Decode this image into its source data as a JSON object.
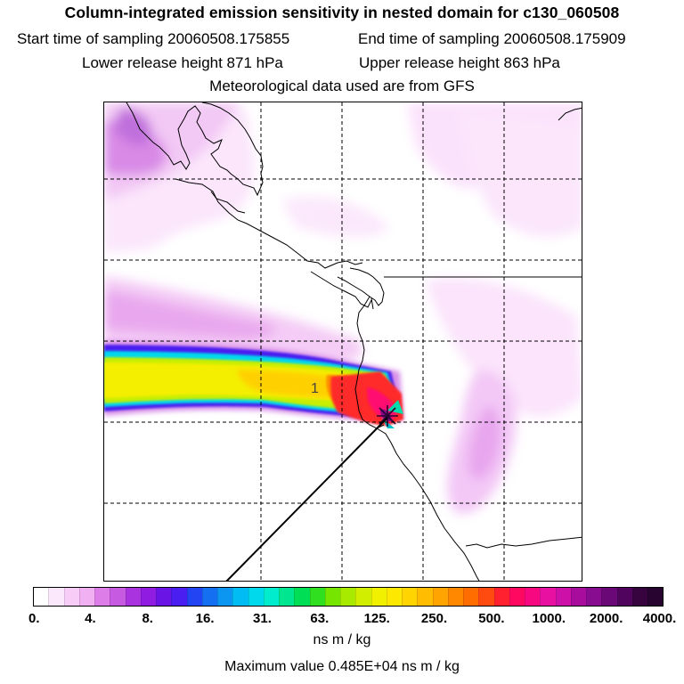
{
  "header": {
    "title": "Column-integrated emission sensitivity in nested domain for c130_060508",
    "start_label": "Start time of sampling 20060508.175855",
    "end_label": "End time of sampling 20060508.175909",
    "lower_label": "Lower release height  871 hPa",
    "upper_label": "Upper release height  863 hPa",
    "met_label": "Meteorological data used are from GFS"
  },
  "chart_data": {
    "type": "heatmap",
    "title": "Column-integrated emission sensitivity in nested domain for c130_060508",
    "map_annotation": "1",
    "colorbar": {
      "tick_labels": [
        "0.",
        "4.",
        "8.",
        "16.",
        "31.",
        "63.",
        "125.",
        "250.",
        "500.",
        "1000.",
        "2000.",
        "4000."
      ],
      "units": "ns m / kg",
      "colors": [
        "#ffffff",
        "#fce8fc",
        "#f7cdf7",
        "#f0b0f2",
        "#dd7ee8",
        "#c65ae0",
        "#aa33e0",
        "#8f1ce0",
        "#6a14e6",
        "#4a1ef0",
        "#2244f2",
        "#1470f0",
        "#0c96f2",
        "#00bcf2",
        "#00d8ec",
        "#00eccc",
        "#00e690",
        "#00de55",
        "#30e020",
        "#76e600",
        "#a8ea00",
        "#d2ee00",
        "#f0f000",
        "#fce800",
        "#ffd400",
        "#ffbc00",
        "#ffa400",
        "#ff8800",
        "#ff6c00",
        "#ff4a10",
        "#ff2030",
        "#ff0860",
        "#f80880",
        "#e810a0",
        "#cc10a8",
        "#a80c9c",
        "#880c90",
        "#6a0878",
        "#50045e",
        "#380440",
        "#280430"
      ]
    },
    "max_value_label": "Maximum value  0.485E+04 ns m / kg"
  }
}
